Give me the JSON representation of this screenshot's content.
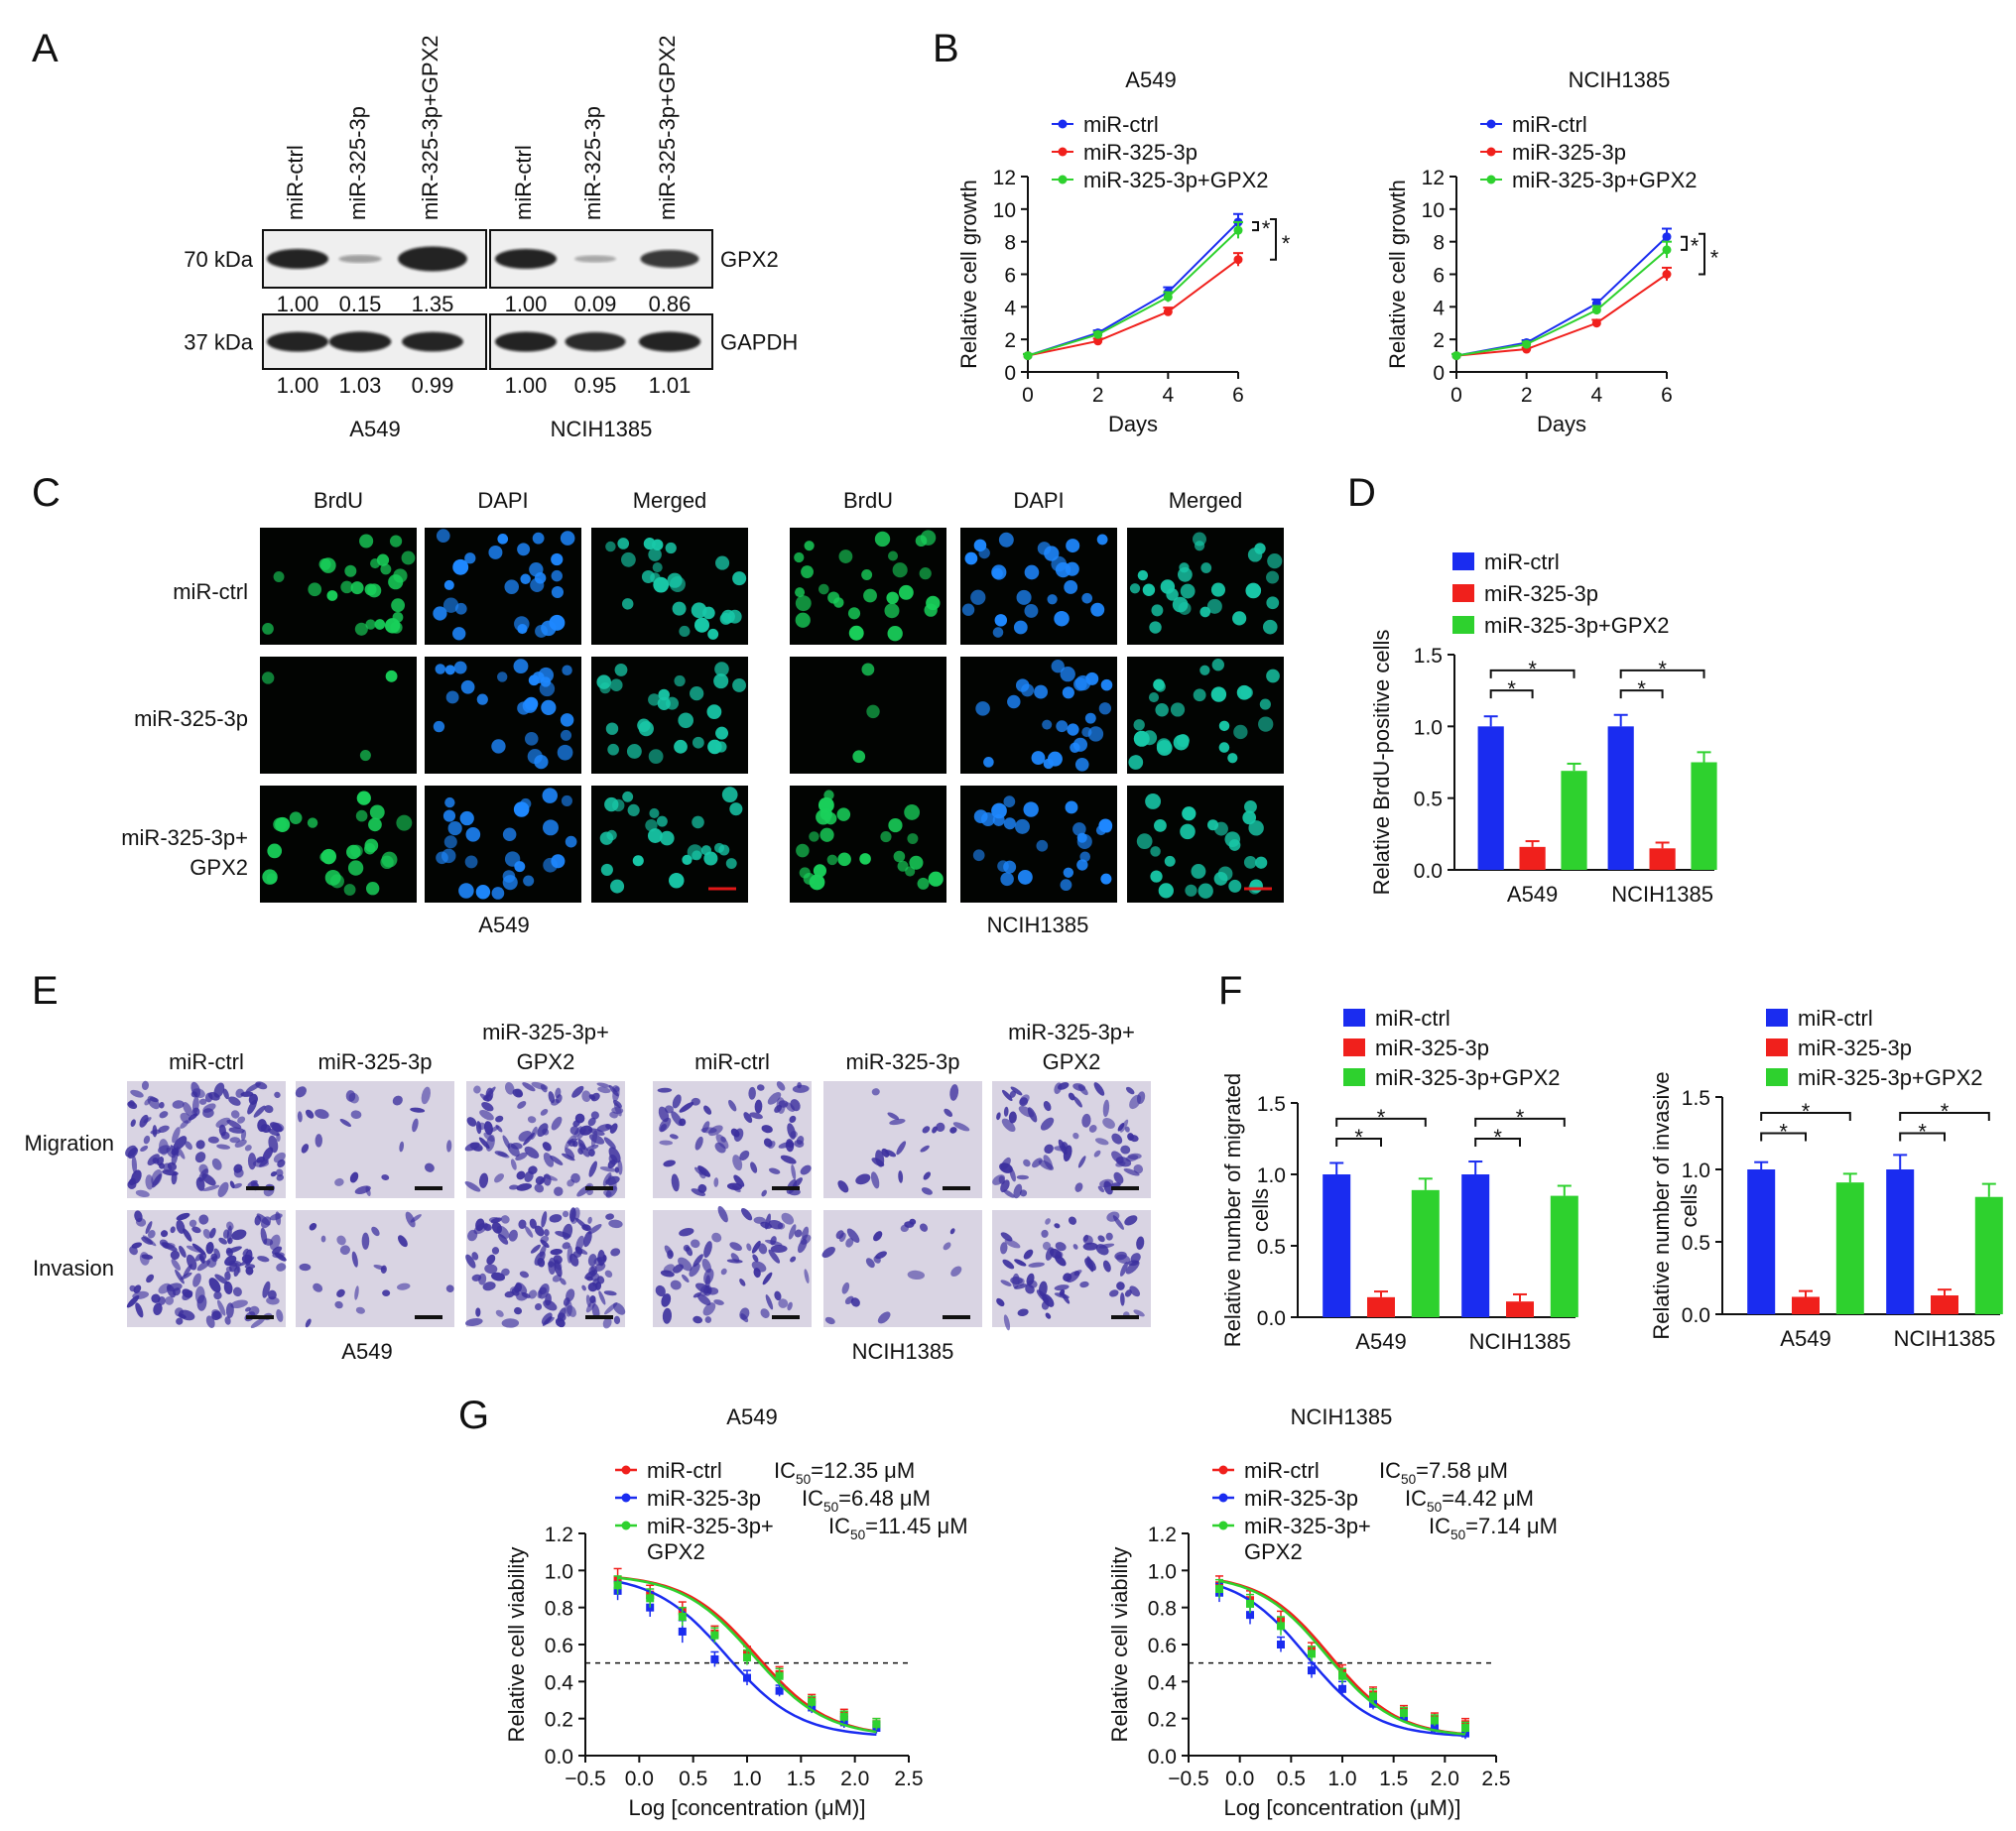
{
  "colors": {
    "ctrl": "#1a2cf0",
    "mir": "#f0201c",
    "gpx2": "#2ed12e",
    "axis": "#111111",
    "brdu_green": "#19d05a",
    "dapi_blue": "#1e88ff",
    "merged_teal": "#18c8a8",
    "crystal_violet": "#3b2f9e",
    "membrane_bg": "#d9d4e3",
    "scale_bar_red": "#e01818",
    "scale_bar_black": "#111111"
  },
  "panel_letters": [
    "A",
    "B",
    "C",
    "D",
    "E",
    "F",
    "G"
  ],
  "legend_labels": {
    "ctrl": "miR-ctrl",
    "mir": "miR-325-3p",
    "gpx2": "miR-325-3p+GPX2",
    "gpx2_split_1": "miR-325-3p+",
    "gpx2_split_2": "GPX2"
  },
  "significance_mark": "*",
  "panel_a": {
    "lane_labels": [
      "miR-ctrl",
      "miR-325-3p",
      "miR-325-3p+GPX2"
    ],
    "rows": [
      {
        "name": "GPX2",
        "size": "70 kDa",
        "values_a549": [
          "1.00",
          "0.15",
          "1.35"
        ],
        "values_ncih": [
          "1.00",
          "0.09",
          "0.86"
        ],
        "intensity_a549": [
          1.0,
          0.15,
          1.35
        ],
        "intensity_ncih": [
          1.0,
          0.09,
          0.86
        ]
      },
      {
        "name": "GAPDH",
        "size": "37 kDa",
        "values_a549": [
          "1.00",
          "1.03",
          "0.99"
        ],
        "values_ncih": [
          "1.00",
          "0.95",
          "1.01"
        ],
        "intensity_a549": [
          1.0,
          1.03,
          0.99
        ],
        "intensity_ncih": [
          1.0,
          0.95,
          1.01
        ]
      }
    ],
    "cell_lines": [
      "A549",
      "NCIH1385"
    ]
  },
  "panel_c": {
    "stains": [
      "BrdU",
      "DAPI",
      "Merged"
    ],
    "rows": [
      "miR-ctrl",
      "miR-325-3p",
      "miR-325-3p+ GPX2"
    ],
    "row_label_split": [
      "miR-325-3p+",
      "GPX2"
    ],
    "cell_lines": [
      "A549",
      "NCIH1385"
    ]
  },
  "panel_e": {
    "columns": [
      "miR-ctrl",
      "miR-325-3p",
      "miR-325-3p+ GPX2"
    ],
    "column_split": [
      "miR-325-3p+",
      "GPX2"
    ],
    "rows": [
      "Migration",
      "Invasion"
    ],
    "cell_lines": [
      "A549",
      "NCIH1385"
    ]
  },
  "chart_data": [
    {
      "panel": "B-left",
      "type": "line",
      "title": "A549",
      "xlabel": "Days",
      "ylabel": "Relative cell growth",
      "xlim": [
        0,
        6
      ],
      "ylim": [
        0,
        12
      ],
      "xticks": [
        0,
        2,
        4,
        6
      ],
      "yticks": [
        0,
        2,
        4,
        6,
        8,
        10,
        12
      ],
      "x": [
        0,
        2,
        4,
        6
      ],
      "series": [
        {
          "name": "miR-ctrl",
          "color_key": "ctrl",
          "values": [
            1.0,
            2.4,
            4.9,
            9.2
          ],
          "errors": [
            0.1,
            0.15,
            0.3,
            0.5
          ]
        },
        {
          "name": "miR-325-3p",
          "color_key": "mir",
          "values": [
            1.0,
            1.9,
            3.7,
            6.9
          ],
          "errors": [
            0.1,
            0.15,
            0.25,
            0.4
          ]
        },
        {
          "name": "miR-325-3p+GPX2",
          "color_key": "gpx2",
          "values": [
            1.0,
            2.3,
            4.6,
            8.7
          ],
          "errors": [
            0.1,
            0.15,
            0.3,
            0.5
          ]
        }
      ],
      "significance": [
        "*",
        "*"
      ],
      "legend": "top-left"
    },
    {
      "panel": "B-right",
      "type": "line",
      "title": "NCIH1385",
      "xlabel": "Days",
      "ylabel": "Relative cell growth",
      "xlim": [
        0,
        6
      ],
      "ylim": [
        0,
        12
      ],
      "xticks": [
        0,
        2,
        4,
        6
      ],
      "yticks": [
        0,
        2,
        4,
        6,
        8,
        10,
        12
      ],
      "x": [
        0,
        2,
        4,
        6
      ],
      "series": [
        {
          "name": "miR-ctrl",
          "color_key": "ctrl",
          "values": [
            1.0,
            1.8,
            4.2,
            8.3
          ],
          "errors": [
            0.1,
            0.15,
            0.25,
            0.5
          ]
        },
        {
          "name": "miR-325-3p",
          "color_key": "mir",
          "values": [
            1.0,
            1.4,
            3.0,
            6.0
          ],
          "errors": [
            0.1,
            0.1,
            0.2,
            0.4
          ]
        },
        {
          "name": "miR-325-3p+GPX2",
          "color_key": "gpx2",
          "values": [
            1.0,
            1.7,
            3.8,
            7.5
          ],
          "errors": [
            0.1,
            0.15,
            0.25,
            0.5
          ]
        }
      ],
      "significance": [
        "*",
        "*"
      ],
      "legend": "top-left"
    },
    {
      "panel": "D",
      "type": "bar",
      "ylabel": "Relative BrdU-positive cells",
      "categories": [
        "A549",
        "NCIH1385"
      ],
      "ylim": [
        0,
        1.5
      ],
      "yticks": [
        "0.0",
        "0.5",
        "1.0",
        "1.5"
      ],
      "series": [
        {
          "name": "miR-ctrl",
          "color_key": "ctrl",
          "values": [
            1.0,
            1.0
          ],
          "errors": [
            0.07,
            0.08
          ]
        },
        {
          "name": "miR-325-3p",
          "color_key": "mir",
          "values": [
            0.16,
            0.15
          ],
          "errors": [
            0.04,
            0.04
          ]
        },
        {
          "name": "miR-325-3p+GPX2",
          "color_key": "gpx2",
          "values": [
            0.69,
            0.75
          ],
          "errors": [
            0.05,
            0.07
          ]
        }
      ],
      "significance": [
        "*",
        "*"
      ],
      "legend": "top-left"
    },
    {
      "panel": "F-left",
      "type": "bar",
      "ylabel": "Relative number of migrated cells",
      "ylabel_lines": [
        "Relative number of migrated",
        "cells"
      ],
      "categories": [
        "A549",
        "NCIH1385"
      ],
      "ylim": [
        0,
        1.5
      ],
      "yticks": [
        "0.0",
        "0.5",
        "1.0",
        "1.5"
      ],
      "series": [
        {
          "name": "miR-ctrl",
          "color_key": "ctrl",
          "values": [
            1.0,
            1.0
          ],
          "errors": [
            0.08,
            0.09
          ]
        },
        {
          "name": "miR-325-3p",
          "color_key": "mir",
          "values": [
            0.14,
            0.11
          ],
          "errors": [
            0.04,
            0.05
          ]
        },
        {
          "name": "miR-325-3p+GPX2",
          "color_key": "gpx2",
          "values": [
            0.89,
            0.85
          ],
          "errors": [
            0.08,
            0.07
          ]
        }
      ],
      "significance": [
        "*",
        "*"
      ],
      "legend": "top-left"
    },
    {
      "panel": "F-right",
      "type": "bar",
      "ylabel": "Relative number of invasive cells",
      "ylabel_lines": [
        "Relative number of invasive",
        "cells"
      ],
      "categories": [
        "A549",
        "NCIH1385"
      ],
      "ylim": [
        0,
        1.5
      ],
      "yticks": [
        "0.0",
        "0.5",
        "1.0",
        "1.5"
      ],
      "series": [
        {
          "name": "miR-ctrl",
          "color_key": "ctrl",
          "values": [
            1.0,
            1.0
          ],
          "errors": [
            0.05,
            0.1
          ]
        },
        {
          "name": "miR-325-3p",
          "color_key": "mir",
          "values": [
            0.12,
            0.13
          ],
          "errors": [
            0.04,
            0.04
          ]
        },
        {
          "name": "miR-325-3p+GPX2",
          "color_key": "gpx2",
          "values": [
            0.91,
            0.81
          ],
          "errors": [
            0.06,
            0.09
          ]
        }
      ],
      "significance": [
        "*",
        "*"
      ],
      "legend": "top-left"
    },
    {
      "panel": "G-left",
      "type": "line",
      "title": "A549",
      "xlabel": "Log [concentration (μM)]",
      "ylabel": "Relative cell viability",
      "xlim": [
        -0.5,
        2.5
      ],
      "ylim": [
        0,
        1.2
      ],
      "xticks": [
        "−0.5",
        "0.0",
        "0.5",
        "1.0",
        "1.5",
        "2.0",
        "2.5"
      ],
      "yticks": [
        "0.0",
        "0.2",
        "0.4",
        "0.6",
        "0.8",
        "1.0",
        "1.2"
      ],
      "x": [
        -0.2,
        0.1,
        0.4,
        0.7,
        1.0,
        1.3,
        1.6,
        1.9,
        2.2
      ],
      "series": [
        {
          "name": "miR-ctrl",
          "color_key": "mir",
          "ic50": "IC50=12.35 μM",
          "log_ic50": 1.09,
          "hill": 1.3,
          "values": [
            0.95,
            0.87,
            0.78,
            0.66,
            0.55,
            0.44,
            0.3,
            0.22,
            0.17
          ],
          "errors": [
            0.06,
            0.05,
            0.05,
            0.04,
            0.04,
            0.04,
            0.03,
            0.03,
            0.03
          ]
        },
        {
          "name": "miR-325-3p",
          "color_key": "ctrl",
          "ic50": "IC50=6.48 μM",
          "log_ic50": 0.81,
          "hill": 1.3,
          "values": [
            0.89,
            0.8,
            0.67,
            0.52,
            0.42,
            0.35,
            0.26,
            0.18,
            0.15
          ],
          "errors": [
            0.05,
            0.05,
            0.06,
            0.04,
            0.04,
            0.03,
            0.03,
            0.03,
            0.03
          ]
        },
        {
          "name": "miR-325-3p+ GPX2",
          "color_key": "gpx2",
          "ic50": "IC50=11.45 μM",
          "log_ic50": 1.06,
          "hill": 1.3,
          "values": [
            0.92,
            0.85,
            0.75,
            0.65,
            0.53,
            0.43,
            0.29,
            0.21,
            0.17
          ],
          "errors": [
            0.05,
            0.05,
            0.05,
            0.04,
            0.04,
            0.04,
            0.03,
            0.03,
            0.03
          ]
        }
      ],
      "reference_line_y": 0.5,
      "legend": "top-left"
    },
    {
      "panel": "G-right",
      "type": "line",
      "title": "NCIH1385",
      "xlabel": "Log [concentration (μM)]",
      "ylabel": "Relative cell viability",
      "xlim": [
        -0.5,
        2.5
      ],
      "ylim": [
        0,
        1.2
      ],
      "xticks": [
        "−0.5",
        "0.0",
        "0.5",
        "1.0",
        "1.5",
        "2.0",
        "2.5"
      ],
      "yticks": [
        "0.0",
        "0.2",
        "0.4",
        "0.6",
        "0.8",
        "1.0",
        "1.2"
      ],
      "x": [
        -0.2,
        0.1,
        0.4,
        0.7,
        1.0,
        1.3,
        1.6,
        1.9,
        2.2
      ],
      "series": [
        {
          "name": "miR-ctrl",
          "color_key": "mir",
          "ic50": "IC50=7.58 μM",
          "log_ic50": 0.88,
          "hill": 1.3,
          "values": [
            0.92,
            0.84,
            0.73,
            0.57,
            0.45,
            0.33,
            0.24,
            0.2,
            0.17
          ],
          "errors": [
            0.05,
            0.05,
            0.05,
            0.04,
            0.04,
            0.04,
            0.03,
            0.03,
            0.03
          ]
        },
        {
          "name": "miR-325-3p",
          "color_key": "ctrl",
          "ic50": "IC50=4.42 μM",
          "log_ic50": 0.65,
          "hill": 1.3,
          "values": [
            0.88,
            0.76,
            0.6,
            0.46,
            0.36,
            0.28,
            0.21,
            0.15,
            0.12
          ],
          "errors": [
            0.05,
            0.05,
            0.04,
            0.04,
            0.04,
            0.03,
            0.03,
            0.03,
            0.03
          ]
        },
        {
          "name": "miR-325-3p+ GPX2",
          "color_key": "gpx2",
          "ic50": "IC50=7.14 μM",
          "log_ic50": 0.85,
          "hill": 1.3,
          "values": [
            0.9,
            0.82,
            0.7,
            0.55,
            0.43,
            0.32,
            0.23,
            0.19,
            0.15
          ],
          "errors": [
            0.05,
            0.05,
            0.05,
            0.04,
            0.04,
            0.04,
            0.03,
            0.03,
            0.03
          ]
        }
      ],
      "reference_line_y": 0.5,
      "legend": "top-left"
    }
  ]
}
